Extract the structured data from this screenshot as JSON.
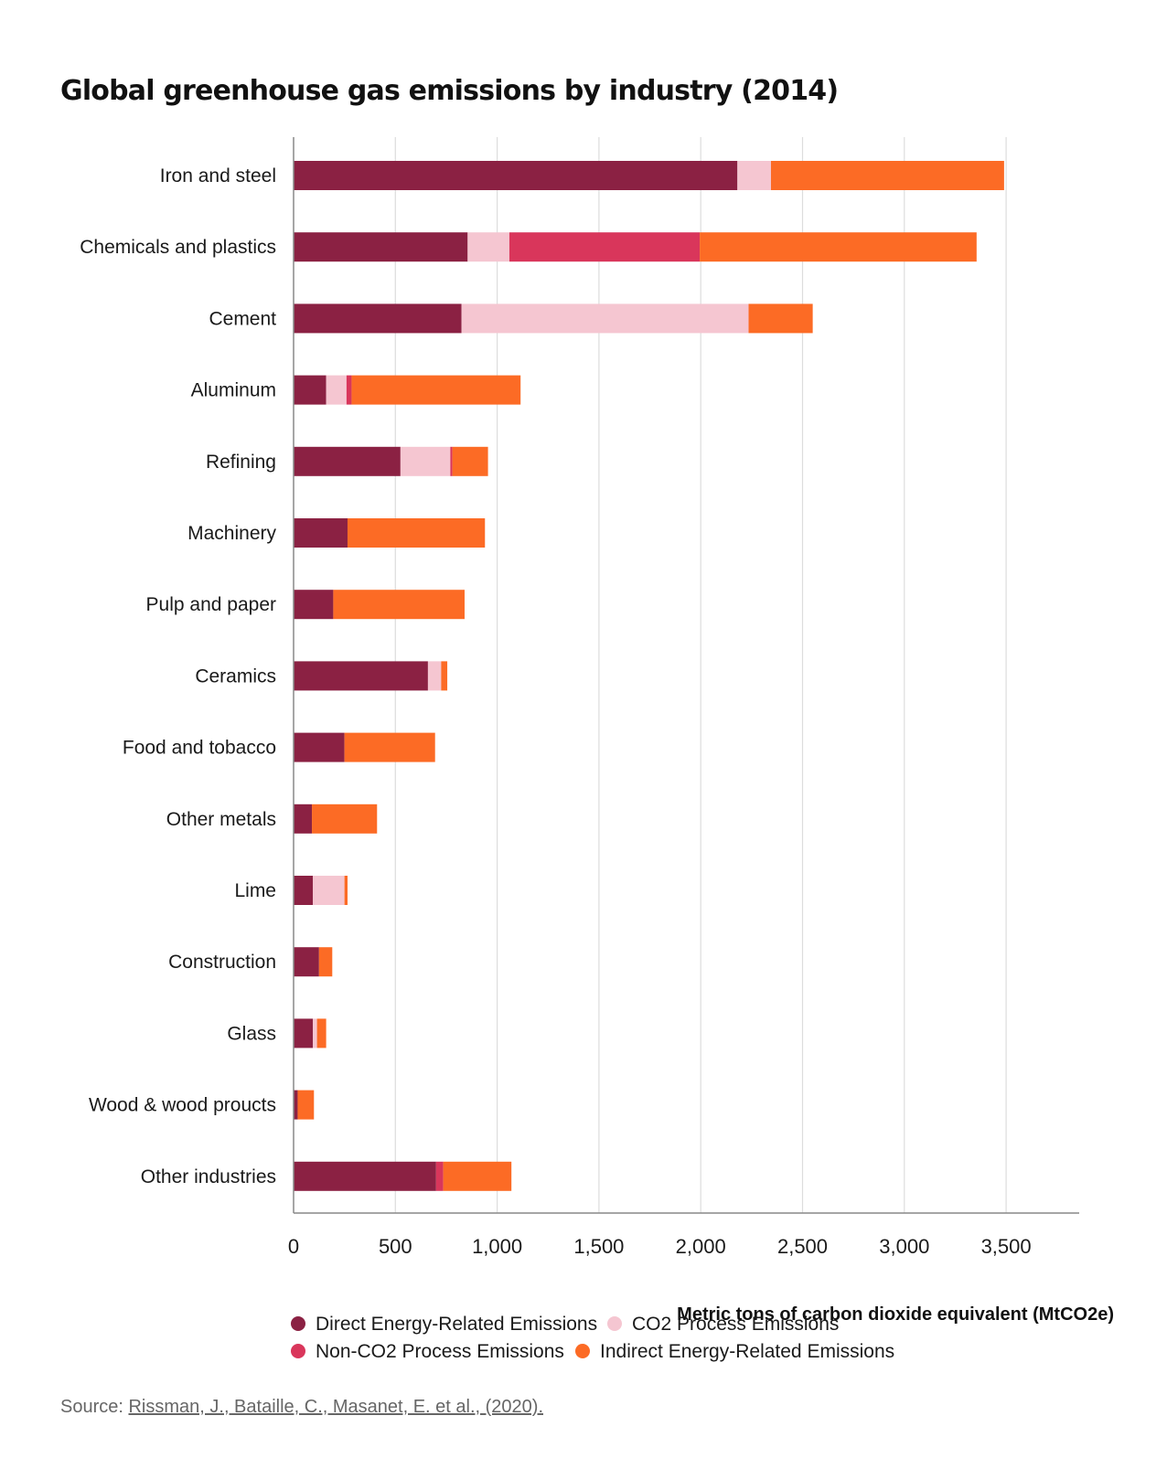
{
  "chart_data": {
    "type": "bar",
    "orientation": "horizontal",
    "stacked": true,
    "title": "Global greenhouse gas emissions by industry (2014)",
    "xlabel": "Metric tons of carbon dioxide equivalent (MtCO2e)",
    "ylabel": "",
    "xlim": [
      0,
      3850
    ],
    "xticks": [
      0,
      500,
      1000,
      1500,
      2000,
      2500,
      3000,
      3500
    ],
    "xtick_labels": [
      "0",
      "500",
      "1,000",
      "1,500",
      "2,000",
      "2,500",
      "3,000",
      "3,500"
    ],
    "grid": true,
    "legend_position": "bottom",
    "categories": [
      "Iron and steel",
      "Chemicals and plastics",
      "Cement",
      "Aluminum",
      "Refining",
      "Machinery",
      "Pulp and paper",
      "Ceramics",
      "Food and tobacco",
      "Other metals",
      "Lime",
      "Construction",
      "Glass",
      "Wood & wood proucts",
      "Other industries"
    ],
    "series": [
      {
        "name": "Direct Energy-Related Emissions",
        "color": "#8b2143",
        "values": [
          2180,
          855,
          825,
          160,
          525,
          265,
          195,
          660,
          250,
          90,
          95,
          125,
          95,
          20,
          700
        ]
      },
      {
        "name": "CO2 Process Emissions",
        "color": "#f5c6d1",
        "values": [
          165,
          205,
          1410,
          100,
          245,
          0,
          0,
          65,
          0,
          0,
          155,
          0,
          20,
          0,
          0
        ]
      },
      {
        "name": "Non-CO2 Process Emissions",
        "color": "#d9365b",
        "values": [
          0,
          935,
          0,
          25,
          10,
          0,
          0,
          0,
          0,
          0,
          0,
          0,
          0,
          0,
          35
        ]
      },
      {
        "name": "Indirect Energy-Related Emissions",
        "color": "#fc6b25",
        "values": [
          1145,
          1360,
          315,
          830,
          175,
          675,
          645,
          30,
          445,
          320,
          15,
          65,
          45,
          80,
          335
        ]
      }
    ]
  },
  "source": {
    "prefix": "Source: ",
    "citation": "Rissman, J., Bataille, C., Masanet, E. et al., (2020)."
  },
  "colors": {
    "gridline": "#dddddd",
    "axis": "#888888"
  }
}
